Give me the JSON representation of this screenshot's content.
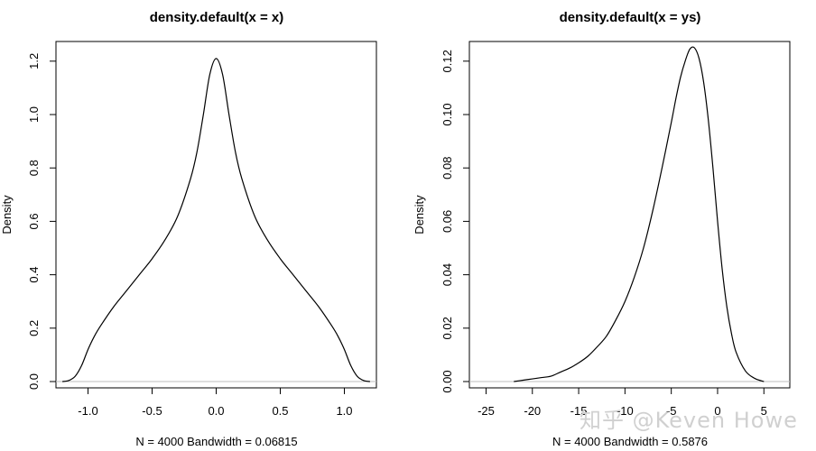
{
  "watermark": "知乎 @Keven Howe",
  "chart_data": [
    {
      "type": "line",
      "title": "density.default(x = x)",
      "xlabel": "N = 4000   Bandwidth = 0.06815",
      "ylabel": "Density",
      "xlim": [
        -1.25,
        1.25
      ],
      "ylim": [
        0,
        1.25
      ],
      "xticks": [
        -1.0,
        -0.5,
        0.0,
        0.5,
        1.0
      ],
      "xtick_labels": [
        "-1.0",
        "-0.5",
        "0.0",
        "0.5",
        "1.0"
      ],
      "yticks": [
        0.0,
        0.2,
        0.4,
        0.6,
        0.8,
        1.0,
        1.2
      ],
      "ytick_labels": [
        "0.0",
        "0.2",
        "0.4",
        "0.6",
        "0.8",
        "1.0",
        "1.2"
      ],
      "grid": false,
      "series": [
        {
          "x": [
            -1.2,
            -1.15,
            -1.1,
            -1.05,
            -1.0,
            -0.95,
            -0.9,
            -0.8,
            -0.7,
            -0.6,
            -0.5,
            -0.4,
            -0.3,
            -0.2,
            -0.15,
            -0.1,
            -0.05,
            0.0,
            0.05,
            0.1,
            0.15,
            0.2,
            0.3,
            0.4,
            0.5,
            0.6,
            0.7,
            0.8,
            0.9,
            0.95,
            1.0,
            1.05,
            1.1,
            1.15,
            1.2
          ],
          "y": [
            0.0,
            0.004,
            0.02,
            0.06,
            0.12,
            0.17,
            0.21,
            0.28,
            0.34,
            0.4,
            0.46,
            0.53,
            0.62,
            0.76,
            0.86,
            1.0,
            1.15,
            1.21,
            1.15,
            1.0,
            0.86,
            0.76,
            0.62,
            0.53,
            0.46,
            0.4,
            0.34,
            0.28,
            0.21,
            0.17,
            0.12,
            0.06,
            0.02,
            0.004,
            0.0
          ]
        }
      ]
    },
    {
      "type": "line",
      "title": "density.default(x = ys)",
      "xlabel": "N = 4000   Bandwidth = 0.5876",
      "ylabel": "Density",
      "xlim": [
        -26.8,
        7.8
      ],
      "ylim": [
        0,
        0.125
      ],
      "xticks": [
        -25,
        -20,
        -15,
        -10,
        -5,
        0,
        5
      ],
      "xtick_labels": [
        "-25",
        "-20",
        "-15",
        "-10",
        "-5",
        "0",
        "5"
      ],
      "yticks": [
        0.0,
        0.02,
        0.04,
        0.06,
        0.08,
        0.1,
        0.12
      ],
      "ytick_labels": [
        "0.00",
        "0.02",
        "0.04",
        "0.06",
        "0.08",
        "0.10",
        "0.12"
      ],
      "grid": false,
      "series": [
        {
          "x": [
            -22,
            -21,
            -20,
            -19,
            -18,
            -17,
            -16,
            -15,
            -14,
            -13,
            -12,
            -11,
            -10,
            -9,
            -8,
            -7,
            -6,
            -5,
            -4.5,
            -4,
            -3.5,
            -3,
            -2.5,
            -2,
            -1.5,
            -1,
            -0.5,
            0,
            0.5,
            1,
            1.5,
            2,
            3,
            4,
            5
          ],
          "y": [
            0.0,
            0.0005,
            0.001,
            0.0015,
            0.002,
            0.0035,
            0.005,
            0.007,
            0.0095,
            0.013,
            0.017,
            0.023,
            0.03,
            0.039,
            0.05,
            0.064,
            0.08,
            0.097,
            0.106,
            0.114,
            0.12,
            0.1245,
            0.125,
            0.121,
            0.112,
            0.098,
            0.08,
            0.06,
            0.042,
            0.028,
            0.018,
            0.011,
            0.004,
            0.0012,
            0.0
          ]
        }
      ]
    }
  ]
}
